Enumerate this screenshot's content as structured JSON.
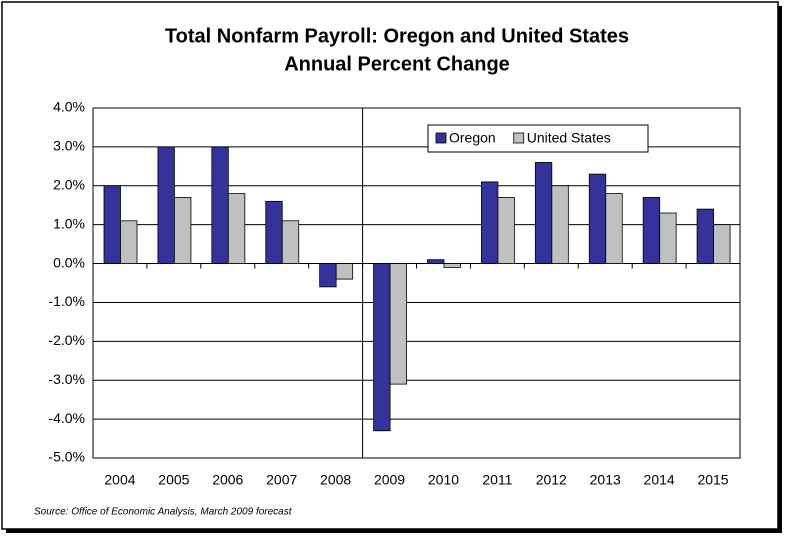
{
  "chart_data": {
    "type": "bar",
    "title": "Total Nonfarm Payroll: Oregon and United States",
    "subtitle": "Annual Percent Change",
    "source": "Source: Office of Economic Analysis, March 2009 forecast",
    "categories": [
      "2004",
      "2005",
      "2006",
      "2007",
      "2008",
      "2009",
      "2010",
      "2011",
      "2012",
      "2013",
      "2014",
      "2015"
    ],
    "series": [
      {
        "name": "Oregon",
        "color": "#333399",
        "values": [
          2.0,
          3.0,
          3.0,
          1.6,
          -0.6,
          -4.3,
          0.1,
          2.1,
          2.6,
          2.3,
          1.7,
          1.4
        ]
      },
      {
        "name": "United States",
        "color": "#c0c0c0",
        "values": [
          1.1,
          1.7,
          1.8,
          1.1,
          -0.4,
          -3.1,
          -0.1,
          1.7,
          2.0,
          1.8,
          1.3,
          1.0
        ]
      }
    ],
    "ylim": [
      -5,
      4
    ],
    "yticks": [
      {
        "value": -5,
        "label": "-5.0%"
      },
      {
        "value": -4,
        "label": "-4.0%"
      },
      {
        "value": -3,
        "label": "-3.0%"
      },
      {
        "value": -2,
        "label": "-2.0%"
      },
      {
        "value": -1,
        "label": "-1.0%"
      },
      {
        "value": 0,
        "label": "0.0%"
      },
      {
        "value": 1,
        "label": "1.0%"
      },
      {
        "value": 2,
        "label": "2.0%"
      },
      {
        "value": 3,
        "label": "3.0%"
      },
      {
        "value": 4,
        "label": "4.0%"
      }
    ],
    "grid": true,
    "legend": "upper right"
  }
}
